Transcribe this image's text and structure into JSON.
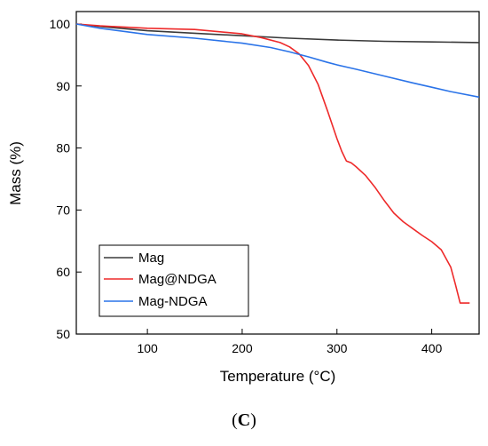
{
  "chart_data": {
    "type": "line",
    "xlabel": "Temperature (°C)",
    "ylabel": "Mass (%)",
    "xlim": [
      25,
      450
    ],
    "ylim": [
      50,
      102
    ],
    "x_ticks": [
      100,
      200,
      300,
      400
    ],
    "y_ticks": [
      50,
      60,
      70,
      80,
      90,
      100
    ],
    "grid": false,
    "legend_position": "bottom-left",
    "series": [
      {
        "name": "Mag",
        "color": "#3a3a3a",
        "x": [
          25,
          50,
          100,
          150,
          200,
          250,
          300,
          350,
          400,
          450
        ],
        "y": [
          100,
          99.6,
          98.9,
          98.5,
          98.1,
          97.7,
          97.4,
          97.2,
          97.1,
          97.0
        ]
      },
      {
        "name": "Mag@NDGA",
        "color": "#ee2a2a",
        "x": [
          25,
          50,
          100,
          150,
          200,
          220,
          240,
          250,
          260,
          270,
          280,
          290,
          300,
          305,
          310,
          315,
          320,
          330,
          340,
          350,
          360,
          370,
          380,
          390,
          400,
          410,
          420,
          425,
          430,
          435,
          440
        ],
        "y": [
          100,
          99.7,
          99.3,
          99.1,
          98.4,
          97.8,
          97.0,
          96.3,
          95.2,
          93.3,
          90.3,
          86.0,
          81.5,
          79.5,
          77.9,
          77.6,
          77.0,
          75.6,
          73.7,
          71.5,
          69.5,
          68.1,
          67.0,
          65.9,
          64.9,
          63.6,
          60.8,
          58.0,
          55.0,
          55.0,
          55.0
        ]
      },
      {
        "name": "Mag-NDGA",
        "color": "#2a73e8",
        "x": [
          25,
          50,
          100,
          150,
          200,
          230,
          250,
          270,
          290,
          300,
          320,
          350,
          380,
          400,
          420,
          450
        ],
        "y": [
          100,
          99.3,
          98.3,
          97.7,
          96.9,
          96.2,
          95.5,
          94.7,
          93.8,
          93.4,
          92.7,
          91.6,
          90.5,
          89.8,
          89.1,
          88.2
        ]
      }
    ]
  },
  "panel_label": "C"
}
